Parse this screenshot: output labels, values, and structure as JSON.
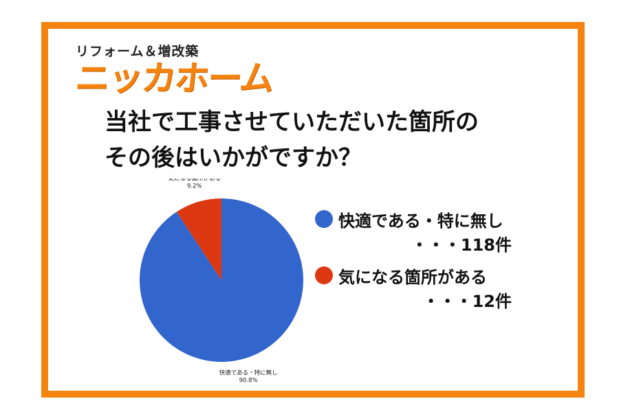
{
  "brand": {
    "subtitle": "リフォーム＆増改築",
    "logo_text": "ニッカホーム"
  },
  "question": {
    "line1": "当社で工事させていただいた箇所の",
    "line2": "その後はいかがですか？"
  },
  "colors": {
    "frame": "#f5830f",
    "brand": "#f5830f",
    "series_blue": "#3366cc",
    "series_red": "#dc3912"
  },
  "legend": [
    {
      "label": "快適である・特に無し",
      "count": "・・・118件",
      "color": "#3366cc"
    },
    {
      "label": "気になる箇所がある",
      "count": "・・・12件",
      "color": "#dc3912"
    }
  ],
  "chart_data": {
    "type": "pie",
    "categories": [
      "快適である・特に無し",
      "気になる箇所がある"
    ],
    "values": [
      118,
      12
    ],
    "percent_labels": [
      "90.8%",
      "9.2%"
    ],
    "colors": [
      "#3366cc",
      "#dc3912"
    ],
    "start": "top",
    "direction": "clockwise"
  }
}
